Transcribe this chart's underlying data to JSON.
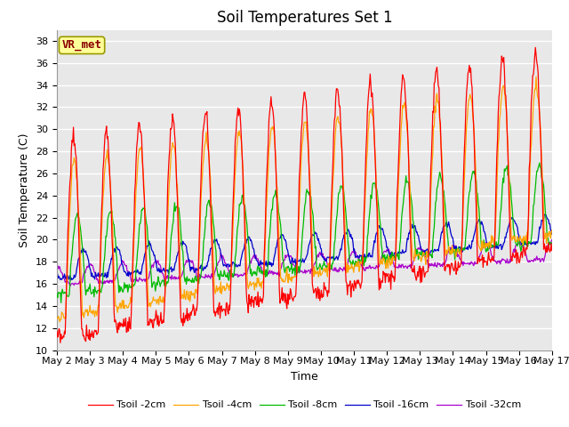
{
  "title": "Soil Temperatures Set 1",
  "xlabel": "Time",
  "ylabel": "Soil Temperature (C)",
  "ylim": [
    10,
    39
  ],
  "x_labels": [
    "May 2",
    "May 3",
    "May 4",
    "May 5",
    "May 6",
    "May 7",
    "May 8",
    "May 9",
    "May 10",
    "May 11",
    "May 12",
    "May 13",
    "May 14",
    "May 15",
    "May 16",
    "May 17"
  ],
  "annotation_text": "VR_met",
  "annotation_color": "#8B0000",
  "annotation_bg": "#FFFF99",
  "line_colors": {
    "2cm": "#FF0000",
    "4cm": "#FFA500",
    "8cm": "#00BB00",
    "16cm": "#0000CC",
    "32cm": "#AA00CC"
  },
  "legend_labels": [
    "Tsoil -2cm",
    "Tsoil -4cm",
    "Tsoil -8cm",
    "Tsoil -16cm",
    "Tsoil -32cm"
  ],
  "fig_facecolor": "#FFFFFF",
  "ax_facecolor": "#E8E8E8",
  "grid_color": "#FFFFFF",
  "title_fontsize": 12,
  "label_fontsize": 9,
  "tick_fontsize": 8
}
